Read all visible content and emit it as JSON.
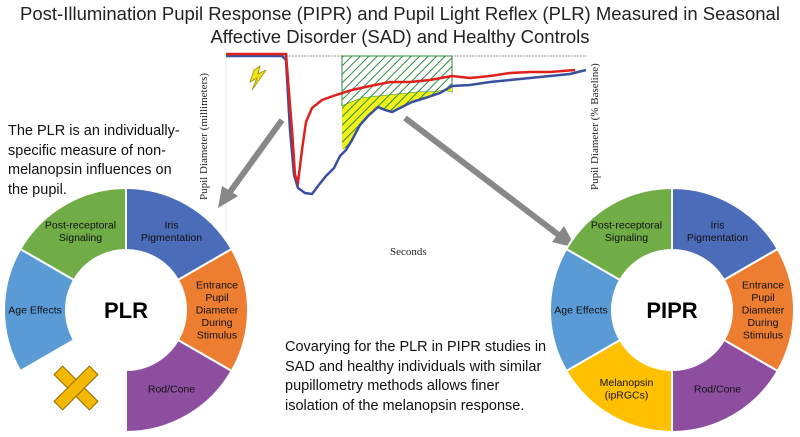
{
  "title_line1": "Post-Illumination Pupil Response (PIPR) and Pupil Light Reflex (PLR) Measured in Seasonal",
  "title_line2": "Affective Disorder (SAD) and Healthy Controls",
  "left_note": [
    "The PLR is an individually-",
    "specific measure of non-",
    "melanopsin influences on",
    "the pupil."
  ],
  "bottom_note": [
    "Covarying for the PLR in PIPR studies in",
    "SAD and healthy individuals with similar",
    "pupillometry methods allows finer",
    "isolation of the melanopsin response."
  ],
  "graph": {
    "ylabel_left": "Pupil Diameter (millimeters)",
    "ylabel_right": "Pupil Diameter (% Baseline)",
    "xlabel": "Seconds",
    "colors": {
      "red_trace": "#e0201b",
      "blue_trace": "#3a4fa0",
      "hatch": "#2e8b3e",
      "fill": "#f2f21a"
    }
  },
  "plr": {
    "center_label": "PLR",
    "segments": [
      {
        "label": [
          "Iris",
          "Pigmentation"
        ],
        "color": "#4b6cb8"
      },
      {
        "label": [
          "Entrance",
          "Pupil",
          "Diameter",
          "During",
          "Stimulus"
        ],
        "color": "#ed7d31"
      },
      {
        "label": [
          "Rod/Cone"
        ],
        "color": "#8e4ea0"
      },
      {
        "label": [],
        "color": null
      },
      {
        "label": [
          "Age Effects"
        ],
        "color": "#5b9bd5"
      },
      {
        "label": [
          "Post-receptoral",
          "Signaling"
        ],
        "color": "#70ad47"
      }
    ],
    "excluded_marker_color": "#f5b800"
  },
  "pipr": {
    "center_label": "PIPR",
    "segments": [
      {
        "label": [
          "Iris",
          "Pigmentation"
        ],
        "color": "#4b6cb8"
      },
      {
        "label": [
          "Entrance",
          "Pupil",
          "Diameter",
          "During",
          "Stimulus"
        ],
        "color": "#ed7d31"
      },
      {
        "label": [
          "Rod/Cone"
        ],
        "color": "#8e4ea0"
      },
      {
        "label": [
          "Melanopsin",
          "(ipRGCs)"
        ],
        "color": "#ffc000"
      },
      {
        "label": [
          "Age Effects"
        ],
        "color": "#5b9bd5"
      },
      {
        "label": [
          "Post-receptoral",
          "Signaling"
        ],
        "color": "#70ad47"
      }
    ]
  }
}
